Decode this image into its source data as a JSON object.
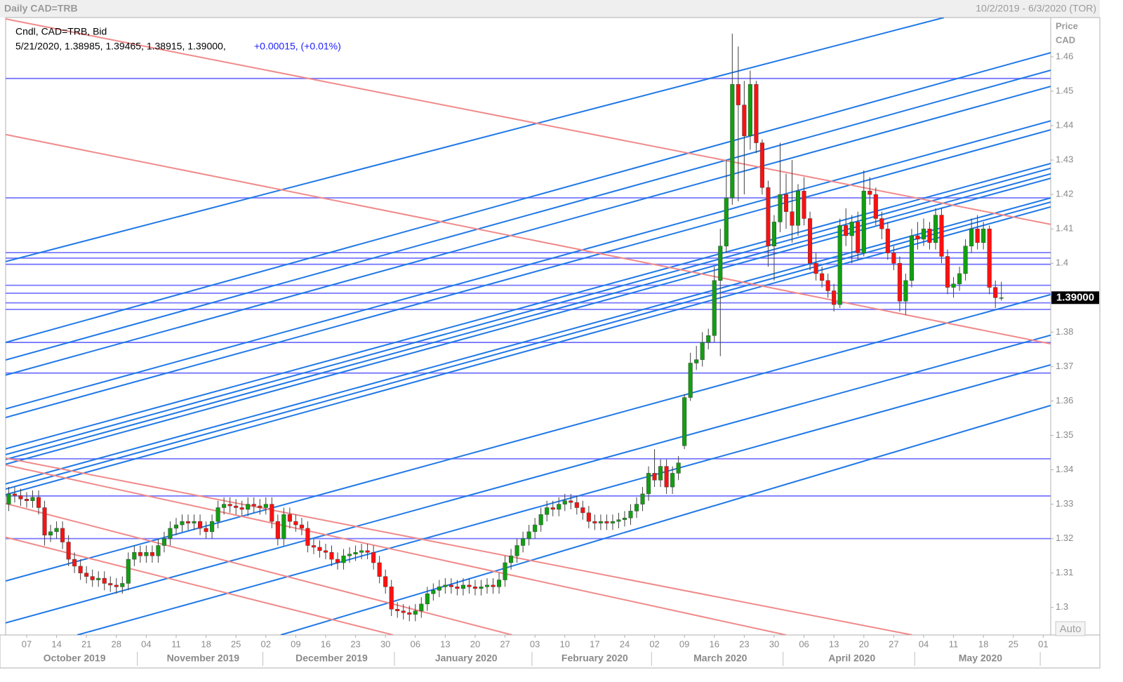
{
  "chart_data": {
    "type": "candlestick",
    "title": "Daily CAD=TRB",
    "date_range": "10/2/2019 - 6/3/2020 (TOR)",
    "series_label": "Cndl, CAD=TRB, Bid",
    "info_line": "5/21/2020, 1.38985, 1.39465, 1.38915, 1.39000,",
    "change_label": "+0.00015, (+0.01%)",
    "y_axis_label": "Price",
    "y_axis_unit": "CAD",
    "last_label": "1.39000",
    "auto_button": "Auto",
    "up_color": "#10a010",
    "down_color": "#ff1010",
    "hline_color": "#7878ff",
    "xlim": [
      -0.52,
      174.25
    ],
    "ylim": [
      1.292,
      1.4714
    ],
    "yticks": [
      1.3,
      1.31,
      1.32,
      1.33,
      1.34,
      1.35,
      1.36,
      1.37,
      1.38,
      1.39,
      1.4,
      1.41,
      1.42,
      1.43,
      1.44,
      1.45,
      1.46
    ],
    "xticks": [
      {
        "value": 3,
        "label": "07"
      },
      {
        "value": 8,
        "label": "14"
      },
      {
        "value": 13,
        "label": "21"
      },
      {
        "value": 18,
        "label": "28"
      },
      {
        "value": 23,
        "label": "04"
      },
      {
        "value": 28,
        "label": "11"
      },
      {
        "value": 33,
        "label": "18"
      },
      {
        "value": 38,
        "label": "25"
      },
      {
        "value": 43,
        "label": "02"
      },
      {
        "value": 48,
        "label": "09"
      },
      {
        "value": 53,
        "label": "16"
      },
      {
        "value": 58,
        "label": "23"
      },
      {
        "value": 63,
        "label": "30"
      },
      {
        "value": 68,
        "label": "06"
      },
      {
        "value": 73,
        "label": "13"
      },
      {
        "value": 78,
        "label": "20"
      },
      {
        "value": 83,
        "label": "27"
      },
      {
        "value": 88,
        "label": "03"
      },
      {
        "value": 93,
        "label": "10"
      },
      {
        "value": 98,
        "label": "17"
      },
      {
        "value": 103,
        "label": "24"
      },
      {
        "value": 108,
        "label": "02"
      },
      {
        "value": 113,
        "label": "09"
      },
      {
        "value": 118,
        "label": "16"
      },
      {
        "value": 123,
        "label": "23"
      },
      {
        "value": 128,
        "label": "30"
      },
      {
        "value": 133,
        "label": "06"
      },
      {
        "value": 138,
        "label": "13"
      },
      {
        "value": 143,
        "label": "20"
      },
      {
        "value": 148,
        "label": "27"
      },
      {
        "value": 153,
        "label": "04"
      },
      {
        "value": 158,
        "label": "11"
      },
      {
        "value": 163,
        "label": "18"
      },
      {
        "value": 168,
        "label": "25"
      },
      {
        "value": 173,
        "label": "01"
      }
    ],
    "months": [
      {
        "value": 0,
        "label": "October 2019"
      },
      {
        "value": 22,
        "label": "November 2019"
      },
      {
        "value": 43,
        "label": "December 2019"
      },
      {
        "value": 65,
        "label": "January 2020"
      },
      {
        "value": 88,
        "label": "February 2020"
      },
      {
        "value": 108,
        "label": "March 2020"
      },
      {
        "value": 130,
        "label": "April 2020"
      },
      {
        "value": 152,
        "label": "May 2020"
      },
      {
        "value": 173,
        "label": null
      }
    ],
    "open": [
      1.33,
      1.333,
      1.3325,
      1.3315,
      1.331,
      1.332,
      1.329,
      1.321,
      1.322,
      1.323,
      1.319,
      1.314,
      1.312,
      1.31,
      1.309,
      1.308,
      1.3085,
      1.307,
      1.3065,
      1.306,
      1.307,
      1.314,
      1.316,
      1.315,
      1.316,
      1.315,
      1.318,
      1.32,
      1.323,
      1.324,
      1.325,
      1.3245,
      1.325,
      1.323,
      1.322,
      1.325,
      1.329,
      1.33,
      1.3295,
      1.329,
      1.3285,
      1.33,
      1.3295,
      1.329,
      1.33,
      1.325,
      1.32,
      1.327,
      1.325,
      1.324,
      1.323,
      1.318,
      1.3175,
      1.3165,
      1.316,
      1.314,
      1.313,
      1.315,
      1.3155,
      1.316,
      1.3165,
      1.316,
      1.313,
      1.309,
      1.306,
      1.2995,
      1.299,
      1.2985,
      1.298,
      1.299,
      1.301,
      1.304,
      1.305,
      1.306,
      1.3065,
      1.306,
      1.3055,
      1.3065,
      1.306,
      1.3055,
      1.306,
      1.3065,
      1.306,
      1.308,
      1.313,
      1.315,
      1.318,
      1.32,
      1.322,
      1.324,
      1.327,
      1.329,
      1.3285,
      1.33,
      1.331,
      1.3305,
      1.329,
      1.3275,
      1.325,
      1.3245,
      1.325,
      1.3245,
      1.325,
      1.3255,
      1.326,
      1.328,
      1.33,
      1.333,
      1.339,
      1.337,
      1.341,
      1.335,
      1.339,
      1.347,
      1.361,
      1.371,
      1.372,
      1.377,
      1.379,
      1.395,
      1.405,
      1.419,
      1.452,
      1.446,
      1.437,
      1.452,
      1.435,
      1.422,
      1.405,
      1.412,
      1.42,
      1.415,
      1.411,
      1.421,
      1.413,
      1.4,
      1.397,
      1.395,
      1.392,
      1.388,
      1.411,
      1.408,
      1.412,
      1.403,
      1.421,
      1.42,
      1.413,
      1.41,
      1.403,
      1.4,
      1.389,
      1.395,
      1.408,
      1.407,
      1.41,
      1.406,
      1.414,
      1.402,
      1.393,
      1.394,
      1.397,
      1.405,
      1.41,
      1.406,
      1.41,
      1.393,
      1.38985
    ],
    "high": [
      1.335,
      1.335,
      1.3345,
      1.3335,
      1.334,
      1.334,
      1.331,
      1.324,
      1.325,
      1.325,
      1.321,
      1.316,
      1.314,
      1.312,
      1.311,
      1.3105,
      1.3105,
      1.309,
      1.3085,
      1.309,
      1.316,
      1.318,
      1.318,
      1.318,
      1.318,
      1.32,
      1.322,
      1.325,
      1.326,
      1.327,
      1.327,
      1.327,
      1.327,
      1.325,
      1.327,
      1.331,
      1.332,
      1.332,
      1.3315,
      1.331,
      1.332,
      1.332,
      1.3315,
      1.332,
      1.332,
      1.327,
      1.329,
      1.329,
      1.327,
      1.326,
      1.325,
      1.32,
      1.3195,
      1.3185,
      1.318,
      1.316,
      1.317,
      1.3175,
      1.318,
      1.3185,
      1.3185,
      1.318,
      1.315,
      1.311,
      1.308,
      1.3015,
      1.301,
      1.3005,
      1.301,
      1.303,
      1.306,
      1.307,
      1.308,
      1.3085,
      1.3085,
      1.308,
      1.3085,
      1.3085,
      1.308,
      1.308,
      1.3085,
      1.3085,
      1.31,
      1.315,
      1.317,
      1.32,
      1.322,
      1.324,
      1.326,
      1.329,
      1.331,
      1.331,
      1.332,
      1.333,
      1.333,
      1.3325,
      1.331,
      1.3295,
      1.327,
      1.327,
      1.327,
      1.327,
      1.3275,
      1.328,
      1.33,
      1.332,
      1.335,
      1.341,
      1.346,
      1.343,
      1.343,
      1.341,
      1.344,
      1.362,
      1.374,
      1.376,
      1.38,
      1.381,
      1.399,
      1.41,
      1.43,
      1.4667,
      1.463,
      1.453,
      1.456,
      1.453,
      1.436,
      1.424,
      1.414,
      1.435,
      1.426,
      1.43,
      1.423,
      1.425,
      1.415,
      1.403,
      1.399,
      1.397,
      1.394,
      1.413,
      1.416,
      1.414,
      1.415,
      1.427,
      1.425,
      1.422,
      1.415,
      1.412,
      1.405,
      1.402,
      1.397,
      1.41,
      1.412,
      1.413,
      1.412,
      1.416,
      1.416,
      1.404,
      1.396,
      1.399,
      1.407,
      1.413,
      1.414,
      1.412,
      1.411,
      1.395,
      1.39465
    ],
    "low": [
      1.328,
      1.3305,
      1.3295,
      1.329,
      1.329,
      1.327,
      1.318,
      1.319,
      1.32,
      1.317,
      1.312,
      1.31,
      1.308,
      1.307,
      1.306,
      1.306,
      1.305,
      1.3045,
      1.304,
      1.304,
      1.305,
      1.312,
      1.313,
      1.313,
      1.313,
      1.313,
      1.316,
      1.318,
      1.321,
      1.322,
      1.3225,
      1.3225,
      1.321,
      1.32,
      1.32,
      1.323,
      1.327,
      1.3275,
      1.327,
      1.3265,
      1.3265,
      1.3275,
      1.327,
      1.327,
      1.323,
      1.318,
      1.318,
      1.323,
      1.322,
      1.321,
      1.316,
      1.3155,
      1.3145,
      1.314,
      1.312,
      1.311,
      1.311,
      1.313,
      1.3135,
      1.314,
      1.314,
      1.311,
      1.307,
      1.304,
      1.2975,
      1.297,
      1.2965,
      1.296,
      1.296,
      1.297,
      1.299,
      1.302,
      1.303,
      1.304,
      1.304,
      1.3035,
      1.3035,
      1.304,
      1.3035,
      1.3035,
      1.304,
      1.304,
      1.304,
      1.306,
      1.311,
      1.313,
      1.316,
      1.318,
      1.32,
      1.322,
      1.325,
      1.3265,
      1.3265,
      1.328,
      1.3285,
      1.327,
      1.3255,
      1.323,
      1.3225,
      1.3225,
      1.3225,
      1.3225,
      1.323,
      1.3235,
      1.324,
      1.326,
      1.328,
      1.331,
      1.335,
      1.335,
      1.333,
      1.333,
      1.337,
      1.346,
      1.36,
      1.369,
      1.37,
      1.375,
      1.377,
      1.373,
      1.403,
      1.417,
      1.418,
      1.42,
      1.433,
      1.432,
      1.42,
      1.399,
      1.395,
      1.409,
      1.41,
      1.406,
      1.408,
      1.411,
      1.398,
      1.395,
      1.393,
      1.39,
      1.386,
      1.387,
      1.405,
      1.4,
      1.401,
      1.402,
      1.417,
      1.411,
      1.407,
      1.401,
      1.398,
      1.386,
      1.385,
      1.393,
      1.404,
      1.405,
      1.404,
      1.404,
      1.4,
      1.391,
      1.39,
      1.392,
      1.395,
      1.403,
      1.404,
      1.404,
      1.391,
      1.387,
      1.38915
    ],
    "close": [
      1.333,
      1.3325,
      1.3315,
      1.331,
      1.332,
      1.329,
      1.321,
      1.322,
      1.323,
      1.319,
      1.314,
      1.312,
      1.31,
      1.309,
      1.308,
      1.3085,
      1.307,
      1.3065,
      1.306,
      1.307,
      1.314,
      1.316,
      1.315,
      1.316,
      1.315,
      1.318,
      1.32,
      1.323,
      1.324,
      1.325,
      1.3245,
      1.325,
      1.323,
      1.322,
      1.325,
      1.329,
      1.33,
      1.3295,
      1.329,
      1.3285,
      1.33,
      1.3295,
      1.329,
      1.33,
      1.325,
      1.32,
      1.327,
      1.325,
      1.324,
      1.323,
      1.318,
      1.3175,
      1.3165,
      1.316,
      1.314,
      1.313,
      1.315,
      1.3155,
      1.316,
      1.3165,
      1.316,
      1.313,
      1.309,
      1.306,
      1.2995,
      1.299,
      1.2985,
      1.298,
      1.299,
      1.301,
      1.304,
      1.305,
      1.306,
      1.3065,
      1.306,
      1.3055,
      1.3065,
      1.306,
      1.3055,
      1.306,
      1.3065,
      1.306,
      1.308,
      1.313,
      1.315,
      1.318,
      1.32,
      1.322,
      1.324,
      1.327,
      1.329,
      1.3285,
      1.33,
      1.331,
      1.3305,
      1.329,
      1.3275,
      1.325,
      1.3245,
      1.325,
      1.3245,
      1.325,
      1.3255,
      1.326,
      1.328,
      1.33,
      1.333,
      1.339,
      1.337,
      1.341,
      1.335,
      1.339,
      1.342,
      1.361,
      1.371,
      1.372,
      1.377,
      1.379,
      1.395,
      1.405,
      1.419,
      1.452,
      1.446,
      1.437,
      1.452,
      1.435,
      1.422,
      1.405,
      1.412,
      1.42,
      1.415,
      1.411,
      1.421,
      1.413,
      1.4,
      1.397,
      1.395,
      1.392,
      1.388,
      1.411,
      1.408,
      1.412,
      1.403,
      1.421,
      1.42,
      1.413,
      1.41,
      1.403,
      1.4,
      1.389,
      1.395,
      1.408,
      1.407,
      1.41,
      1.406,
      1.414,
      1.402,
      1.393,
      1.394,
      1.397,
      1.405,
      1.41,
      1.406,
      1.41,
      1.393,
      1.39,
      1.39
    ],
    "hlines": [
      1.4537,
      1.419,
      1.4031,
      1.4015,
      1.3997,
      1.3936,
      1.3913,
      1.3885,
      1.3866,
      1.377,
      1.3681,
      1.3432,
      1.3324,
      1.32
    ],
    "lines": [
      {
        "color": "#1f78e6",
        "x": [
          -0.52,
          156.4
        ],
        "y": [
          1.4005,
          1.4714
        ]
      },
      {
        "color": "#1f78e6",
        "x": [
          -0.52,
          174.25
        ],
        "y": [
          1.377,
          1.4612
        ]
      },
      {
        "color": "#1f78e6",
        "x": [
          -0.52,
          174.25
        ],
        "y": [
          1.3719,
          1.4561
        ]
      },
      {
        "color": "#1f78e6",
        "x": [
          -0.52,
          174.25
        ],
        "y": [
          1.3675,
          1.4514
        ]
      },
      {
        "color": "#1f78e6",
        "x": [
          -0.52,
          174.25
        ],
        "y": [
          1.3577,
          1.4414
        ]
      },
      {
        "color": "#1f78e6",
        "x": [
          -0.52,
          174.25
        ],
        "y": [
          1.3552,
          1.4388
        ]
      },
      {
        "color": "#1f78e6",
        "x": [
          -0.52,
          174.25
        ],
        "y": [
          1.3461,
          1.429
        ]
      },
      {
        "color": "#1f78e6",
        "x": [
          -0.52,
          174.25
        ],
        "y": [
          1.3444,
          1.4276
        ]
      },
      {
        "color": "#1f78e6",
        "x": [
          -0.52,
          174.25
        ],
        "y": [
          1.343,
          1.426
        ]
      },
      {
        "color": "#1f78e6",
        "x": [
          -0.52,
          174.25
        ],
        "y": [
          1.3416,
          1.4247
        ]
      },
      {
        "color": "#1f78e6",
        "x": [
          -0.52,
          174.25
        ],
        "y": [
          1.3359,
          1.419
        ]
      },
      {
        "color": "#1f78e6",
        "x": [
          -0.52,
          174.25
        ],
        "y": [
          1.3344,
          1.4178
        ]
      },
      {
        "color": "#1f78e6",
        "x": [
          -0.52,
          174.25
        ],
        "y": [
          1.3328,
          1.4164
        ]
      },
      {
        "color": "#1f78e6",
        "x": [
          -0.52,
          174.25
        ],
        "y": [
          1.3077,
          1.3909
        ]
      },
      {
        "color": "#1f78e6",
        "x": [
          -0.52,
          174.25
        ],
        "y": [
          1.2955,
          1.3791
        ]
      },
      {
        "color": "#1f78e6",
        "x": [
          11.46,
          174.25
        ],
        "y": [
          1.292,
          1.3705
        ]
      },
      {
        "color": "#1f78e6",
        "x": [
          45.49,
          174.25
        ],
        "y": [
          1.292,
          1.3587
        ]
      },
      {
        "color": "#f08a8a",
        "x": [
          -0.52,
          174.25
        ],
        "y": [
          1.471,
          1.4113
        ]
      },
      {
        "color": "#f08a8a",
        "x": [
          -0.52,
          174.25
        ],
        "y": [
          1.4374,
          1.3766
        ]
      },
      {
        "color": "#f08a8a",
        "x": [
          -0.52,
          151.1
        ],
        "y": [
          1.3434,
          1.292
        ]
      },
      {
        "color": "#f08a8a",
        "x": [
          -0.52,
          130.0
        ],
        "y": [
          1.3414,
          1.292
        ]
      },
      {
        "color": "#f08a8a",
        "x": [
          -0.52,
          84.2
        ],
        "y": [
          1.3302,
          1.292
        ]
      },
      {
        "color": "#f08a8a",
        "x": [
          -0.52,
          64.3
        ],
        "y": [
          1.3204,
          1.292
        ]
      }
    ]
  }
}
